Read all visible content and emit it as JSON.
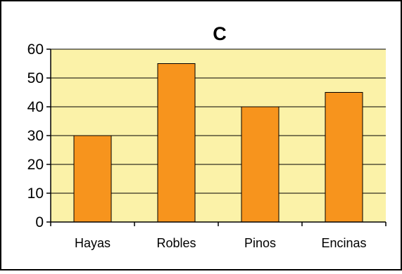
{
  "chart_data": {
    "type": "bar",
    "title": "C",
    "categories": [
      "Hayas",
      "Robles",
      "Pinos",
      "Encinas"
    ],
    "values": [
      30,
      55,
      40,
      45
    ],
    "xlabel": "",
    "ylabel": "",
    "ylim": [
      0,
      60
    ],
    "yticks": [
      0,
      10,
      20,
      30,
      40,
      50,
      60
    ],
    "grid": true,
    "legend": "none",
    "colors": {
      "bar_fill": "#f7941d",
      "bar_stroke": "#000000",
      "plot_background": "#fbf2a8",
      "gridline": "#000000",
      "frame": "#000000"
    }
  }
}
